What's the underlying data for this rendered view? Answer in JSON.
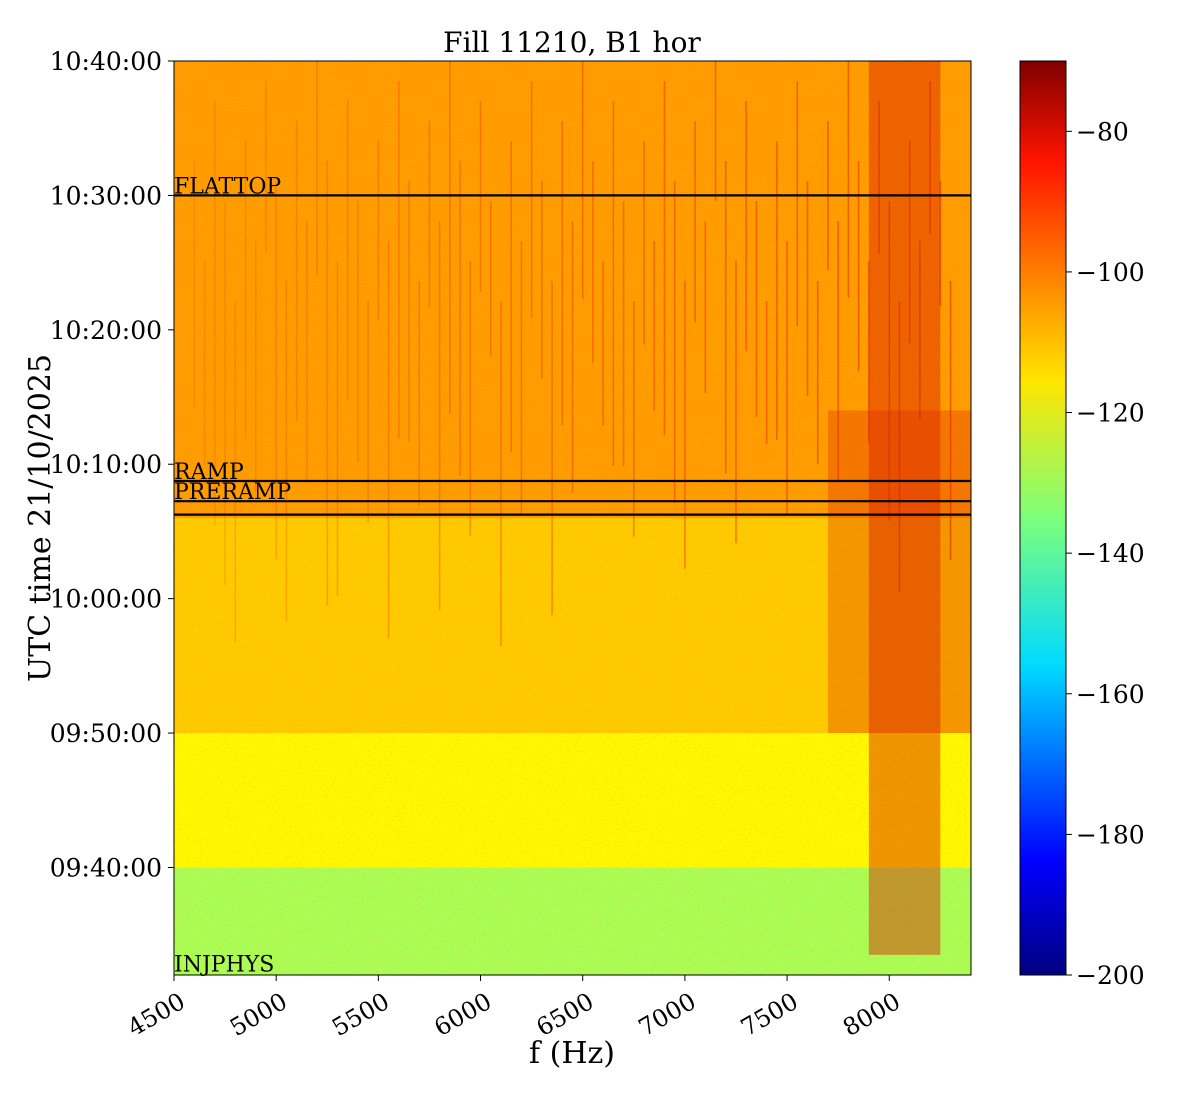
{
  "chart_data": {
    "type": "heatmap",
    "title": "Fill 11210, B1 hor",
    "xlabel": "f (Hz)",
    "ylabel": "UTC time 21/10/2025",
    "xlim": [
      4500,
      8400
    ],
    "x_ticks": [
      4500,
      5000,
      5500,
      6000,
      6500,
      7000,
      7500,
      8000
    ],
    "x_tick_labels": [
      "4500",
      "5000",
      "5500",
      "6000",
      "6500",
      "7000",
      "7500",
      "8000"
    ],
    "ylim": [
      "09:32:00",
      "10:40:00"
    ],
    "y_ticks": [
      "09:40:00",
      "09:50:00",
      "10:00:00",
      "10:10:00",
      "10:20:00",
      "10:30:00",
      "10:40:00"
    ],
    "colormap": "jet",
    "colorbar": {
      "range": [
        -200,
        -70
      ],
      "ticks": [
        -200,
        -180,
        -160,
        -140,
        -120,
        -100,
        -80
      ],
      "tick_labels": [
        "−200",
        "−180",
        "−160",
        "−140",
        "−120",
        "−100",
        "−80"
      ]
    },
    "phase_lines": [
      {
        "label": "FLATTOP",
        "time": "10:30:00"
      },
      {
        "label": "RAMP",
        "time": "10:08:45"
      },
      {
        "label": "PRERAMP",
        "time": "10:07:15"
      },
      {
        "label": "",
        "time": "10:06:15"
      }
    ],
    "annotations": [
      {
        "text": "INJPHYS",
        "time": "09:32:15"
      }
    ],
    "regions": [
      {
        "from": "09:32:00",
        "to": "09:40:00",
        "level_dB": -130
      },
      {
        "from": "09:40:00",
        "to": "09:50:00",
        "level_dB": -118
      },
      {
        "from": "09:50:00",
        "to": "10:06:00",
        "level_dB": -112
      },
      {
        "from": "10:06:00",
        "to": "10:40:00",
        "level_dB": -106
      }
    ]
  }
}
